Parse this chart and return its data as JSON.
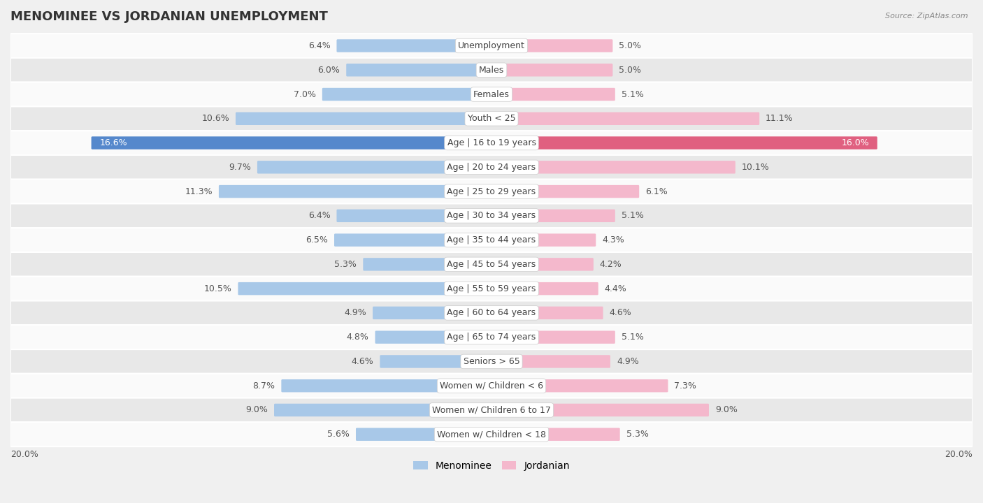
{
  "title": "MENOMINEE VS JORDANIAN UNEMPLOYMENT",
  "source": "Source: ZipAtlas.com",
  "categories": [
    "Unemployment",
    "Males",
    "Females",
    "Youth < 25",
    "Age | 16 to 19 years",
    "Age | 20 to 24 years",
    "Age | 25 to 29 years",
    "Age | 30 to 34 years",
    "Age | 35 to 44 years",
    "Age | 45 to 54 years",
    "Age | 55 to 59 years",
    "Age | 60 to 64 years",
    "Age | 65 to 74 years",
    "Seniors > 65",
    "Women w/ Children < 6",
    "Women w/ Children 6 to 17",
    "Women w/ Children < 18"
  ],
  "menominee": [
    6.4,
    6.0,
    7.0,
    10.6,
    16.6,
    9.7,
    11.3,
    6.4,
    6.5,
    5.3,
    10.5,
    4.9,
    4.8,
    4.6,
    8.7,
    9.0,
    5.6
  ],
  "jordanian": [
    5.0,
    5.0,
    5.1,
    11.1,
    16.0,
    10.1,
    6.1,
    5.1,
    4.3,
    4.2,
    4.4,
    4.6,
    5.1,
    4.9,
    7.3,
    9.0,
    5.3
  ],
  "menominee_color": "#a8c8e8",
  "jordanian_color": "#f4b8cc",
  "menominee_highlight_color": "#5588cc",
  "jordanian_highlight_color": "#e06080",
  "highlight_rows": [
    4
  ],
  "xlim": 20.0,
  "background_color": "#f0f0f0",
  "row_light": "#fafafa",
  "row_dark": "#e8e8e8",
  "legend_menominee": "Menominee",
  "legend_jordanian": "Jordanian",
  "value_fontsize": 9,
  "label_fontsize": 9,
  "title_fontsize": 13
}
